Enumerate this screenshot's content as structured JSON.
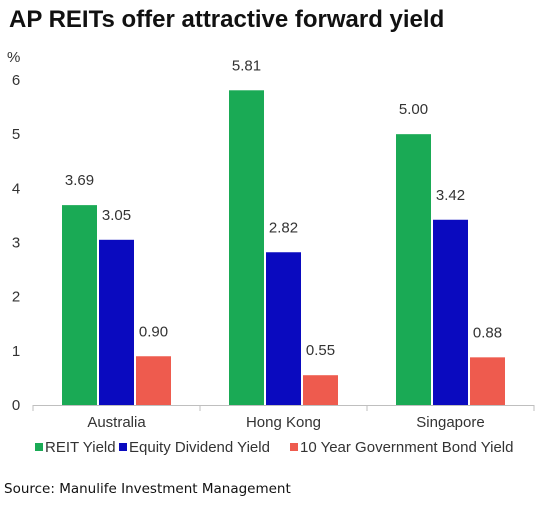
{
  "title": "AP REITs offer attractive forward yield",
  "source": "Source: Manulife Investment Management",
  "chart_data": {
    "type": "bar",
    "ylabel": "%",
    "ylim": [
      0,
      6
    ],
    "yticks": [
      "0",
      "1",
      "2",
      "3",
      "4",
      "5",
      "6"
    ],
    "grid": false,
    "legend_position": "bottom",
    "categories": [
      "Australia",
      "Hong Kong",
      "Singapore"
    ],
    "series": [
      {
        "name": "REIT Yield",
        "color": "#1aaa55",
        "values": [
          3.69,
          5.81,
          5.0
        ],
        "labels": [
          "3.69",
          "5.81",
          "5.00"
        ]
      },
      {
        "name": "Equity Dividend Yield",
        "color": "#0a0abf",
        "values": [
          3.05,
          2.82,
          3.42
        ],
        "labels": [
          "3.05",
          "2.82",
          "3.42"
        ]
      },
      {
        "name": "10 Year Government Bond Yield",
        "color": "#ee5b4e",
        "values": [
          0.9,
          0.55,
          0.88
        ],
        "labels": [
          "0.90",
          "0.55",
          "0.88"
        ]
      }
    ]
  }
}
